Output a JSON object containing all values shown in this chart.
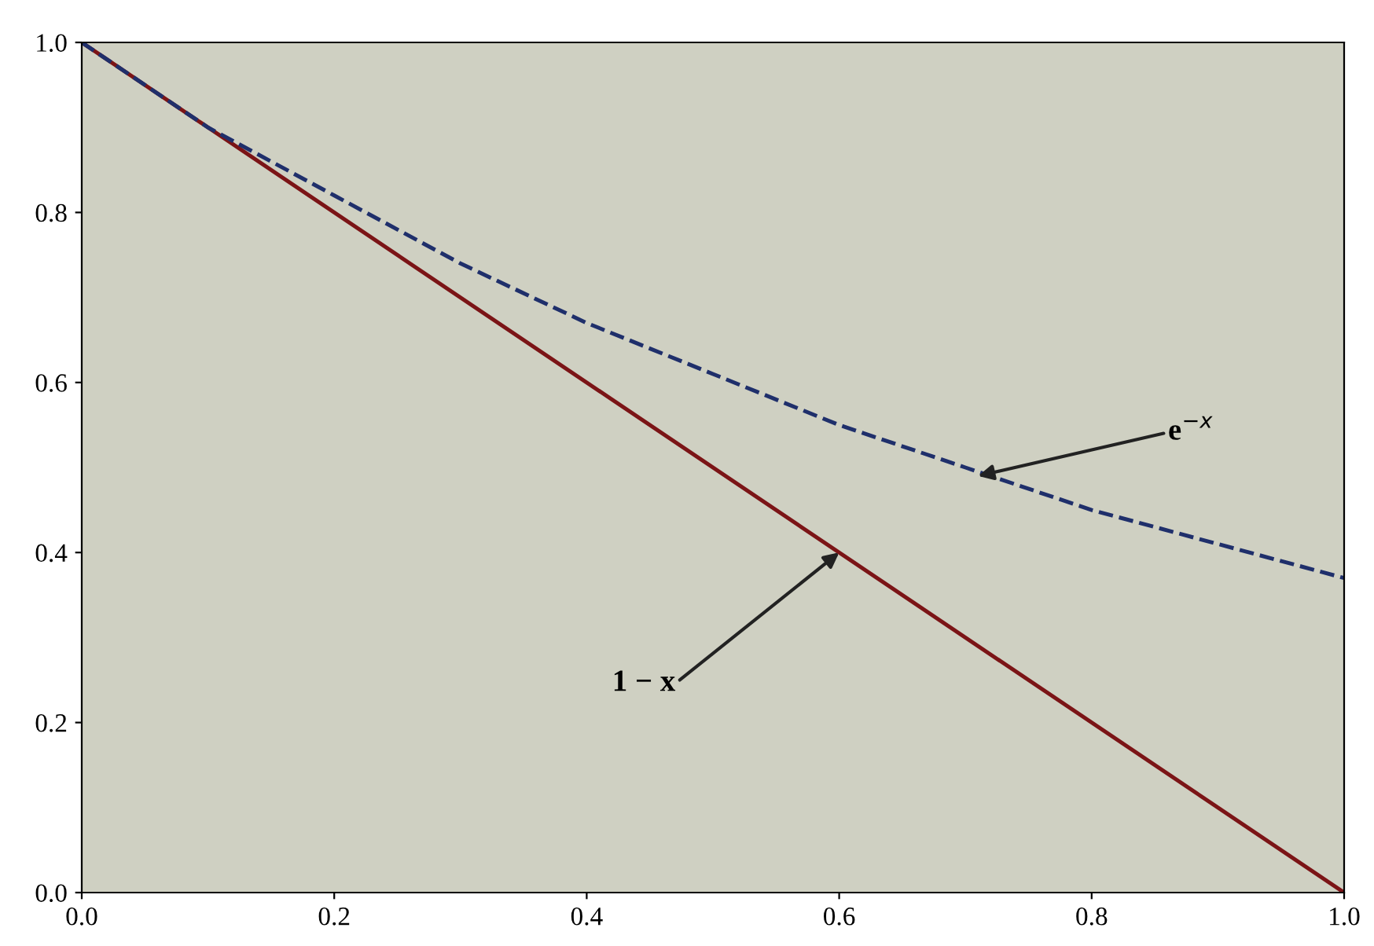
{
  "chart_data": {
    "type": "line",
    "xlim": [
      0,
      1
    ],
    "ylim": [
      0,
      1
    ],
    "xticks": [
      {
        "value": 0,
        "label": "0.0"
      },
      {
        "value": 0.2,
        "label": "0.2"
      },
      {
        "value": 0.4,
        "label": "0.4"
      },
      {
        "value": 0.6,
        "label": "0.6"
      },
      {
        "value": 0.8,
        "label": "0.8"
      },
      {
        "value": 1,
        "label": "1.0"
      }
    ],
    "yticks": [
      {
        "value": 0,
        "label": "0.0"
      },
      {
        "value": 0.2,
        "label": "0.2"
      },
      {
        "value": 0.4,
        "label": "0.4"
      },
      {
        "value": 0.6,
        "label": "0.6"
      },
      {
        "value": 0.8,
        "label": "0.8"
      },
      {
        "value": 1,
        "label": "1.0"
      }
    ],
    "grid": false,
    "legend": false,
    "series": [
      {
        "color": "#7b1416",
        "line_style": "solid",
        "x": [
          0,
          1
        ],
        "values": [
          1,
          0
        ]
      },
      {
        "color": "#1f2f6b",
        "line_style": "dashed",
        "x": [
          0,
          0.1,
          0.2,
          0.3,
          0.4,
          0.5,
          0.6,
          0.7,
          0.8,
          0.9,
          1.0
        ],
        "values": [
          1.0,
          0.9,
          0.82,
          0.74,
          0.67,
          0.61,
          0.55,
          0.5,
          0.45,
          0.41,
          0.37
        ]
      }
    ],
    "annotations": [
      {
        "text": "1 − x",
        "x": 0.6,
        "y": 0.4
      },
      {
        "text": "e$^{−x}$",
        "x": 0.71,
        "y": 0.49
      }
    ]
  }
}
